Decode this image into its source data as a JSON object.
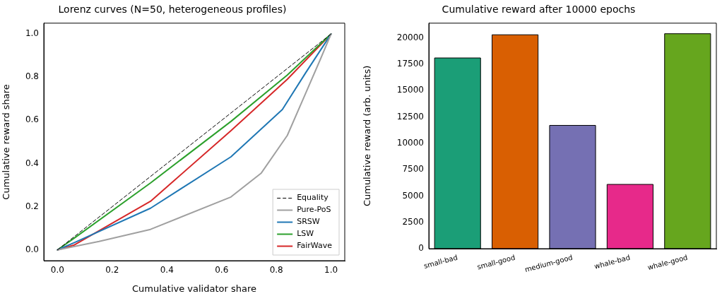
{
  "chart_data": [
    {
      "type": "line",
      "title": "Lorenz curves (N=50, heterogeneous profiles)",
      "xlabel": "Cumulative validator share",
      "ylabel": "Cumulative reward share",
      "xlim": [
        -0.05,
        1.05
      ],
      "ylim": [
        -0.05,
        1.05
      ],
      "xticks": [
        {
          "value": 0,
          "label": "0.0"
        },
        {
          "value": 0.2,
          "label": "0.2"
        },
        {
          "value": 0.4,
          "label": "0.4"
        },
        {
          "value": 0.6,
          "label": "0.6"
        },
        {
          "value": 0.8,
          "label": "0.8"
        },
        {
          "value": 1,
          "label": "1.0"
        }
      ],
      "yticks": [
        {
          "value": 0,
          "label": "0.0"
        },
        {
          "value": 0.2,
          "label": "0.2"
        },
        {
          "value": 0.4,
          "label": "0.4"
        },
        {
          "value": 0.6,
          "label": "0.6"
        },
        {
          "value": 0.8,
          "label": "0.8"
        },
        {
          "value": 1,
          "label": "1.0"
        }
      ],
      "legend": "bottom right",
      "marker": "none",
      "series": [
        {
          "name": "Equality",
          "color": "#000000",
          "line_style": "dashed",
          "x": [
            0,
            1
          ],
          "values": [
            0,
            1
          ]
        },
        {
          "name": "Pure-PoS",
          "color": "#a0a0a0",
          "x": [
            0,
            0.152,
            0.34,
            0.634,
            0.745,
            0.84,
            0.907,
            0.96,
            1
          ],
          "values": [
            0,
            0.039,
            0.095,
            0.245,
            0.356,
            0.53,
            0.725,
            0.88,
            1
          ]
        },
        {
          "name": "SRSW",
          "color": "#1f77b4",
          "x": [
            0,
            0.062,
            0.34,
            0.634,
            0.822,
            0.907,
            1
          ],
          "values": [
            0,
            0.034,
            0.193,
            0.431,
            0.65,
            0.82,
            1
          ]
        },
        {
          "name": "LSW",
          "color": "#2ca02c",
          "x": [
            0,
            0.062,
            0.34,
            0.634,
            0.84,
            1
          ],
          "values": [
            0,
            0.055,
            0.31,
            0.595,
            0.81,
            1
          ]
        },
        {
          "name": "FairWave",
          "color": "#d62728",
          "x": [
            0,
            0.062,
            0.34,
            0.634,
            0.84,
            1
          ],
          "values": [
            0,
            0.023,
            0.225,
            0.552,
            0.79,
            1
          ]
        }
      ]
    },
    {
      "type": "bar",
      "title": "Cumulative reward after 10000 epochs",
      "ylabel": "Cumulative reward (arb. units)",
      "categories": [
        "small-bad",
        "small-good",
        "medium-good",
        "whale-bad",
        "whale-good"
      ],
      "values": [
        18100,
        20300,
        11700,
        6100,
        20400
      ],
      "colors": [
        "#1b9e77",
        "#d95f02",
        "#7570b3",
        "#e7298a",
        "#66a61e"
      ],
      "ylim": [
        0,
        21400
      ],
      "yticks": [
        0,
        2500,
        5000,
        7500,
        10000,
        12500,
        15000,
        17500,
        20000
      ]
    }
  ]
}
